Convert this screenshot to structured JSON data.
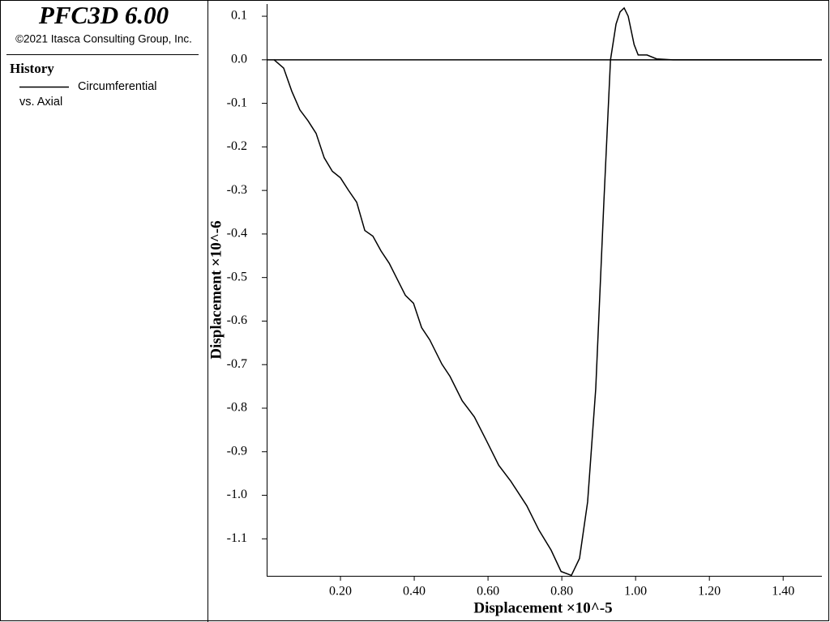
{
  "chart_data": {
    "type": "line",
    "title": "PFC3D 6.00",
    "subtitle": "©2021 Itasca Consulting Group, Inc.",
    "legend_title": "History",
    "legend_subtitle": "vs. Axial",
    "x_label": "Displacement ×10^-5",
    "y_label": "Displacement ×10^-6",
    "x": [
      0.02,
      0.046,
      0.068,
      0.09,
      0.112,
      0.134,
      0.156,
      0.178,
      0.2,
      0.222,
      0.244,
      0.266,
      0.288,
      0.31,
      0.332,
      0.354,
      0.376,
      0.398,
      0.42,
      0.442,
      0.475,
      0.497,
      0.53,
      0.563,
      0.596,
      0.629,
      0.662,
      0.705,
      0.738,
      0.771,
      0.798,
      0.826,
      0.848,
      0.87,
      0.892,
      0.914,
      0.932,
      0.947,
      0.958,
      0.969,
      0.98,
      0.996,
      1.007,
      1.031,
      1.057,
      1.101,
      1.505
    ],
    "series": [
      {
        "name": "Circumferential",
        "color": "#000000",
        "values": [
          0,
          -0.019,
          -0.072,
          -0.115,
          -0.14,
          -0.169,
          -0.225,
          -0.256,
          -0.271,
          -0.3,
          -0.327,
          -0.392,
          -0.405,
          -0.439,
          -0.467,
          -0.504,
          -0.541,
          -0.559,
          -0.615,
          -0.643,
          -0.699,
          -0.727,
          -0.783,
          -0.82,
          -0.875,
          -0.931,
          -0.968,
          -1.024,
          -1.08,
          -1.126,
          -1.175,
          -1.184,
          -1.145,
          -1.015,
          -0.755,
          -0.327,
          0,
          0.082,
          0.11,
          0.119,
          0.1,
          0.035,
          0.011,
          0.011,
          0.002,
          0,
          0
        ]
      }
    ],
    "xlim": [
      0,
      1.505
    ],
    "ylim": [
      -1.185,
      0.128
    ],
    "xticks": [
      {
        "value": 0.2,
        "label": "0.20"
      },
      {
        "value": 0.4,
        "label": "0.40"
      },
      {
        "value": 0.6,
        "label": "0.60"
      },
      {
        "value": 0.8,
        "label": "0.80"
      },
      {
        "value": 1.0,
        "label": "1.00"
      },
      {
        "value": 1.2,
        "label": "1.20"
      },
      {
        "value": 1.4,
        "label": "1.40"
      }
    ],
    "yticks": [
      0.1,
      {
        "value": 0,
        "label": "0.0"
      },
      -0.1,
      -0.2,
      -0.3,
      -0.4,
      -0.5,
      -0.6,
      -0.7,
      -0.8,
      -0.9,
      {
        "value": -1.0,
        "label": "-1.0"
      },
      -1.1
    ]
  }
}
